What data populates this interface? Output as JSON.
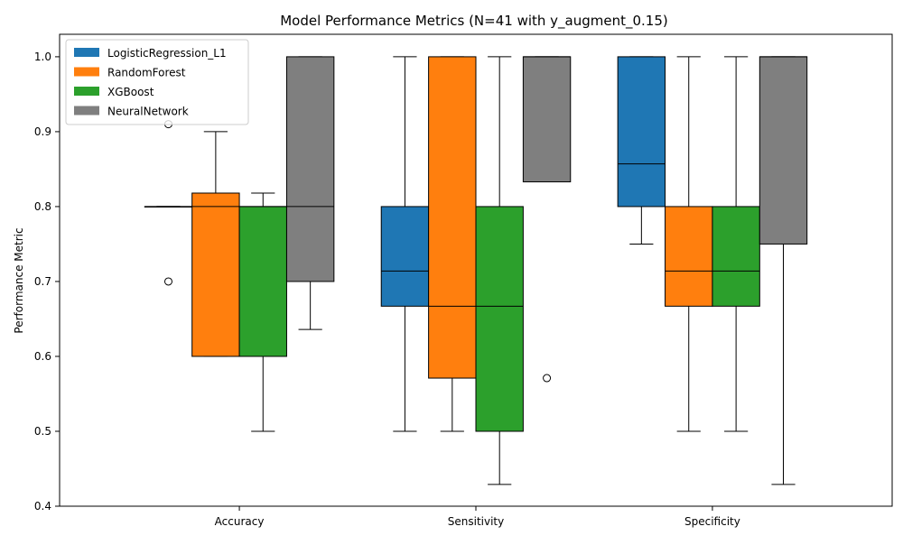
{
  "chart_data": {
    "type": "box",
    "title": "Model Performance Metrics (N=41 with y_augment_0.15)",
    "xlabel": "",
    "ylabel": "Performance Metric",
    "ylim": [
      0.4,
      1.03
    ],
    "yticks": [
      0.4,
      0.5,
      0.6,
      0.7,
      0.8,
      0.9,
      1.0
    ],
    "ytick_labels": [
      "0.4",
      "0.5",
      "0.6",
      "0.7",
      "0.8",
      "0.9",
      "1.0"
    ],
    "categories": [
      "Accuracy",
      "Sensitivity",
      "Specificity"
    ],
    "legend_position": "top-left",
    "grid": false,
    "series": [
      {
        "name": "LogisticRegression_L1",
        "color": "#1f77b4",
        "boxes": [
          {
            "whislo": 0.8,
            "q1": 0.8,
            "med": 0.8,
            "q3": 0.8,
            "whishi": 0.8,
            "fliers": [
              0.91,
              0.7
            ]
          },
          {
            "whislo": 0.5,
            "q1": 0.667,
            "med": 0.714,
            "q3": 0.8,
            "whishi": 1.0,
            "fliers": []
          },
          {
            "whislo": 0.75,
            "q1": 0.8,
            "med": 0.857,
            "q3": 1.0,
            "whishi": 1.0,
            "fliers": []
          }
        ]
      },
      {
        "name": "RandomForest",
        "color": "#ff7f0e",
        "boxes": [
          {
            "whislo": 0.6,
            "q1": 0.6,
            "med": 0.8,
            "q3": 0.818,
            "whishi": 0.9,
            "fliers": []
          },
          {
            "whislo": 0.5,
            "q1": 0.571,
            "med": 0.667,
            "q3": 1.0,
            "whishi": 1.0,
            "fliers": []
          },
          {
            "whislo": 0.5,
            "q1": 0.667,
            "med": 0.714,
            "q3": 0.8,
            "whishi": 1.0,
            "fliers": []
          }
        ]
      },
      {
        "name": "XGBoost",
        "color": "#2ca02c",
        "boxes": [
          {
            "whislo": 0.5,
            "q1": 0.6,
            "med": 0.8,
            "q3": 0.8,
            "whishi": 0.818,
            "fliers": []
          },
          {
            "whislo": 0.429,
            "q1": 0.5,
            "med": 0.667,
            "q3": 0.8,
            "whishi": 1.0,
            "fliers": []
          },
          {
            "whislo": 0.5,
            "q1": 0.667,
            "med": 0.714,
            "q3": 0.8,
            "whishi": 1.0,
            "fliers": []
          }
        ]
      },
      {
        "name": "NeuralNetwork",
        "color": "#7f7f7f",
        "boxes": [
          {
            "whislo": 0.636,
            "q1": 0.7,
            "med": 0.8,
            "q3": 1.0,
            "whishi": 1.0,
            "fliers": []
          },
          {
            "whislo": 0.833,
            "q1": 0.833,
            "med": 1.0,
            "q3": 1.0,
            "whishi": 1.0,
            "fliers": [
              0.571
            ]
          },
          {
            "whislo": 0.429,
            "q1": 0.75,
            "med": 1.0,
            "q3": 1.0,
            "whishi": 1.0,
            "fliers": []
          }
        ]
      }
    ]
  }
}
